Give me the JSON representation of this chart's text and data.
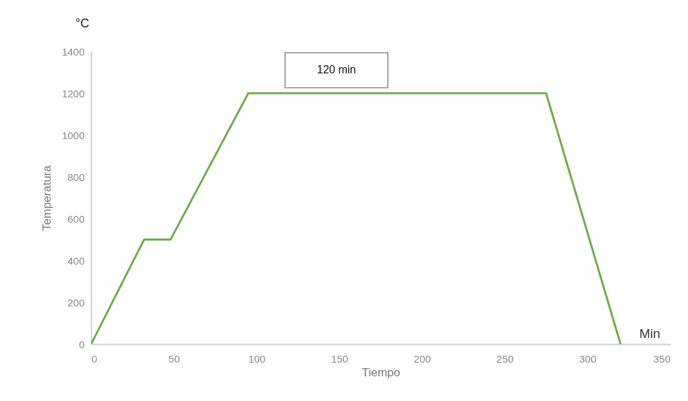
{
  "chart_data": {
    "type": "line",
    "xlabel": "Tiempo",
    "ylabel": "Temperatura",
    "annotations": [
      "°C",
      "Min",
      "120 min"
    ],
    "x": [
      0,
      32,
      48,
      95,
      275,
      320
    ],
    "series": [
      {
        "color": "#70ad47",
        "values": [
          0,
          500,
          500,
          1200,
          1200,
          0
        ]
      }
    ],
    "xlim": [
      0,
      350
    ],
    "xticks": [
      0,
      50,
      100,
      150,
      200,
      250,
      300,
      350
    ],
    "ylim": [
      0,
      1400
    ],
    "yticks": [
      0,
      200,
      400,
      600,
      800,
      1000,
      1200,
      1400
    ],
    "grid": false,
    "marker": "none",
    "line_style": "solid"
  }
}
